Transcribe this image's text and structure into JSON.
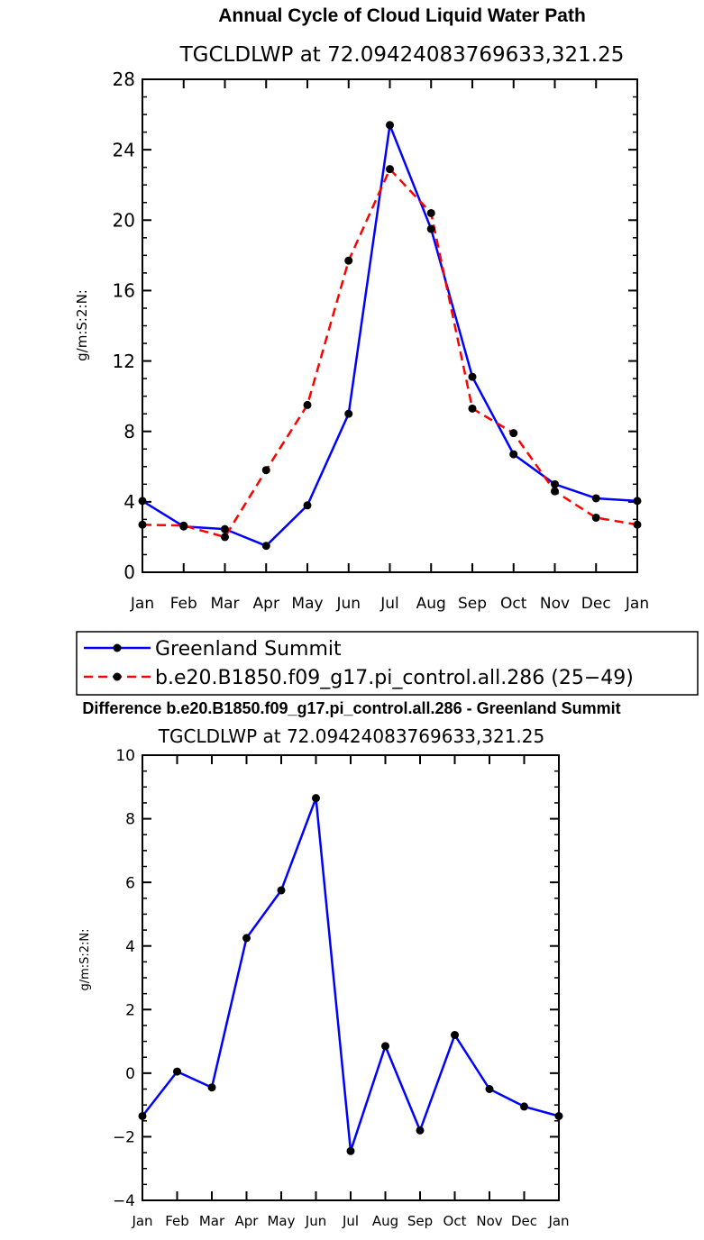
{
  "chart_data": [
    {
      "type": "line",
      "title": "Annual Cycle of Cloud Liquid Water Path",
      "subtitle": "TGCLDLWP  at  72.09424083769633,321.25",
      "ylabel": "g/m:S:2:N:",
      "xlabel": "",
      "ylim": [
        0,
        28
      ],
      "yticks": [
        "0",
        "4",
        "8",
        "12",
        "16",
        "20",
        "24",
        "28"
      ],
      "categories": [
        "Jan",
        "Feb",
        "Mar",
        "Apr",
        "May",
        "Jun",
        "Jul",
        "Aug",
        "Sep",
        "Oct",
        "Nov",
        "Dec",
        "Jan"
      ],
      "series": [
        {
          "name": "Greenland Summit",
          "color": "#0000ff",
          "dash": "solid",
          "values": [
            4.05,
            2.6,
            2.45,
            1.5,
            3.8,
            9.0,
            25.4,
            19.5,
            11.1,
            6.7,
            5.0,
            4.2,
            4.05
          ]
        },
        {
          "name": "b.e20.B1850.f09_g17.pi_control.all.286 (25−49)",
          "color": "#ff0000",
          "dash": "dashed",
          "values": [
            2.7,
            2.65,
            2.0,
            5.8,
            9.5,
            17.7,
            22.9,
            20.4,
            9.3,
            7.9,
            4.6,
            3.1,
            2.7
          ]
        }
      ]
    },
    {
      "type": "line",
      "title": "Difference b.e20.B1850.f09_g17.pi_control.all.286 - Greenland Summit",
      "subtitle": "TGCLDLWP  at  72.09424083769633,321.25",
      "ylabel": "g/m:S:2:N:",
      "xlabel": "",
      "ylim": [
        -4,
        10
      ],
      "yticks": [
        "−4",
        "−2",
        "0",
        "2",
        "4",
        "6",
        "8",
        "10"
      ],
      "categories": [
        "Jan",
        "Feb",
        "Mar",
        "Apr",
        "May",
        "Jun",
        "Jul",
        "Aug",
        "Sep",
        "Oct",
        "Nov",
        "Dec",
        "Jan"
      ],
      "series": [
        {
          "name": "Difference",
          "color": "#0000ff",
          "dash": "solid",
          "values": [
            -1.35,
            0.05,
            -0.45,
            4.25,
            5.75,
            8.65,
            -2.45,
            0.85,
            -1.8,
            1.2,
            -0.5,
            -1.05,
            -1.35
          ]
        }
      ]
    }
  ]
}
